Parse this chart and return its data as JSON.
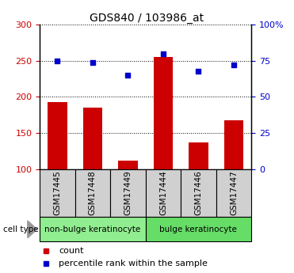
{
  "title": "GDS840 / 103986_at",
  "samples": [
    "GSM17445",
    "GSM17448",
    "GSM17449",
    "GSM17444",
    "GSM17446",
    "GSM17447"
  ],
  "counts": [
    193,
    185,
    112,
    255,
    137,
    168
  ],
  "percentiles": [
    75,
    74,
    65,
    80,
    68,
    72
  ],
  "ylim_left": [
    100,
    300
  ],
  "ylim_right": [
    0,
    100
  ],
  "yticks_left": [
    100,
    150,
    200,
    250,
    300
  ],
  "ytick_labels_left": [
    "100",
    "150",
    "200",
    "250",
    "300"
  ],
  "yticks_right": [
    0,
    25,
    50,
    75,
    100
  ],
  "ytick_labels_right": [
    "0",
    "25",
    "50",
    "75",
    "100%"
  ],
  "bar_color": "#cc0000",
  "dot_color": "#0000cc",
  "groups": [
    {
      "label": "non-bulge keratinocyte",
      "start": 0,
      "end": 3,
      "color": "#90ee90"
    },
    {
      "label": "bulge keratinocyte",
      "start": 3,
      "end": 6,
      "color": "#66dd66"
    }
  ],
  "group_label": "cell type",
  "legend_count_label": "count",
  "legend_percentile_label": "percentile rank within the sample",
  "title_fontsize": 10,
  "axis_label_color_left": "#cc0000",
  "axis_label_color_right": "#0000cc",
  "tick_label_fontsize": 8,
  "sample_tick_fontsize": 7.5,
  "grid_color": "black",
  "sample_box_color": "#d0d0d0"
}
